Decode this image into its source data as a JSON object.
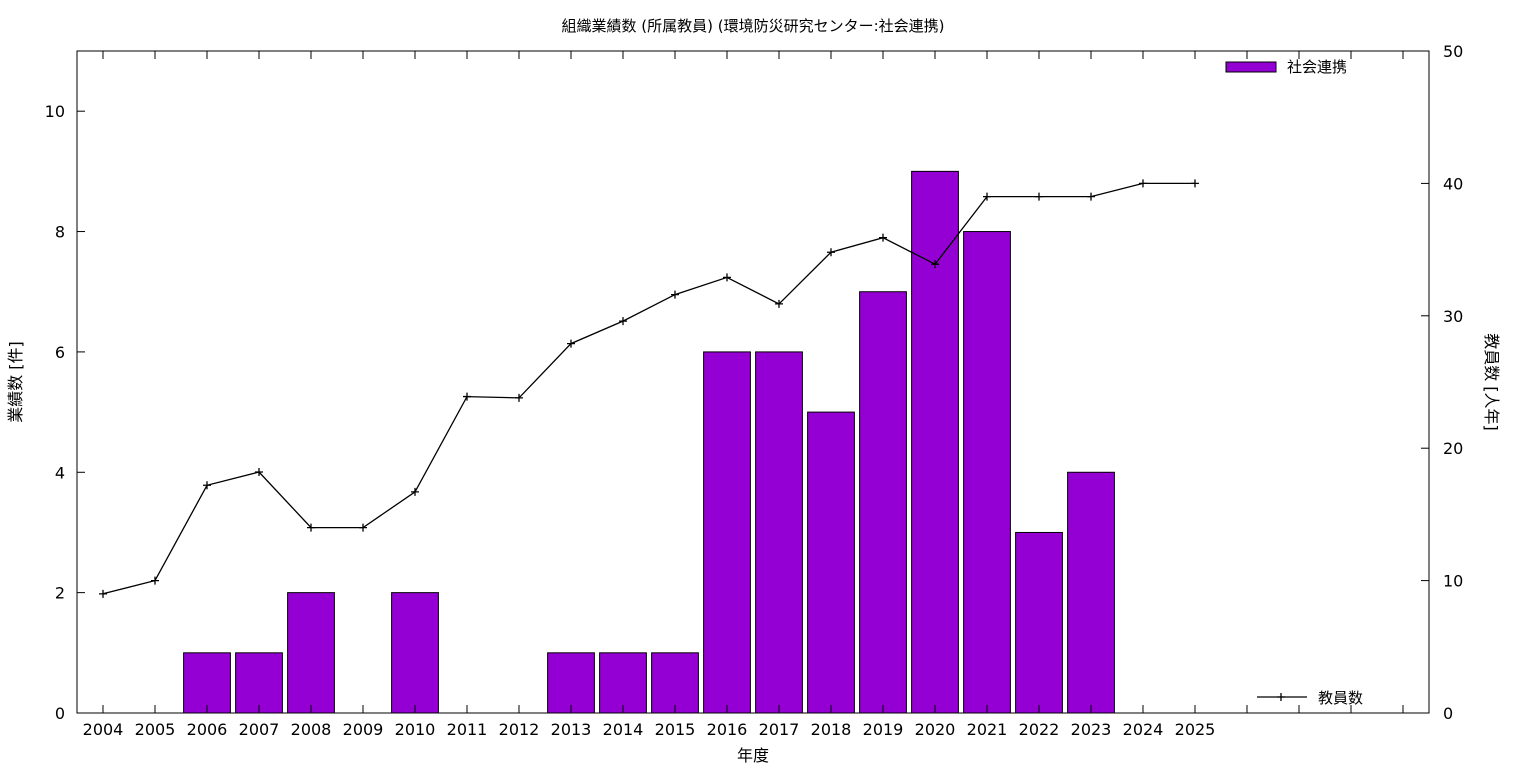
{
  "chart_data": {
    "type": "bar",
    "title": "組織業績数 (所属教員) (環境防災研究センター:社会連携)",
    "xlabel": "年度",
    "ylabel": "業績数 [件]",
    "y2label": "教員数 [人年]",
    "categories": [
      "2004",
      "2005",
      "2006",
      "2007",
      "2008",
      "2009",
      "2010",
      "2011",
      "2012",
      "2013",
      "2014",
      "2015",
      "2016",
      "2017",
      "2018",
      "2019",
      "2020",
      "2021",
      "2022",
      "2023",
      "2024",
      "2025"
    ],
    "x_slots": 26,
    "ylim": [
      0,
      11
    ],
    "yticks": [
      0,
      2,
      4,
      6,
      8,
      10
    ],
    "y2lim": [
      0,
      50
    ],
    "y2ticks": [
      0,
      10,
      20,
      30,
      40,
      50
    ],
    "grid": false,
    "series": [
      {
        "name": "社会連携",
        "type": "bar",
        "axis": "left",
        "color": "#9400d3",
        "values": [
          0,
          0,
          1,
          1,
          2,
          0,
          2,
          0,
          0,
          1,
          1,
          1,
          6,
          6,
          5,
          7,
          9,
          8,
          3,
          4,
          0,
          0
        ]
      },
      {
        "name": "教員数",
        "type": "line",
        "axis": "right",
        "color": "#000000",
        "values": [
          9,
          10,
          17.2,
          18.2,
          14,
          14,
          16.7,
          23.9,
          23.8,
          27.9,
          29.6,
          31.6,
          32.9,
          30.9,
          34.8,
          35.9,
          33.9,
          39,
          39,
          39,
          40,
          40
        ]
      }
    ],
    "legend": [
      {
        "label": "社会連携",
        "placement": "top-right"
      },
      {
        "label": "教員数",
        "placement": "bottom-right"
      }
    ]
  }
}
